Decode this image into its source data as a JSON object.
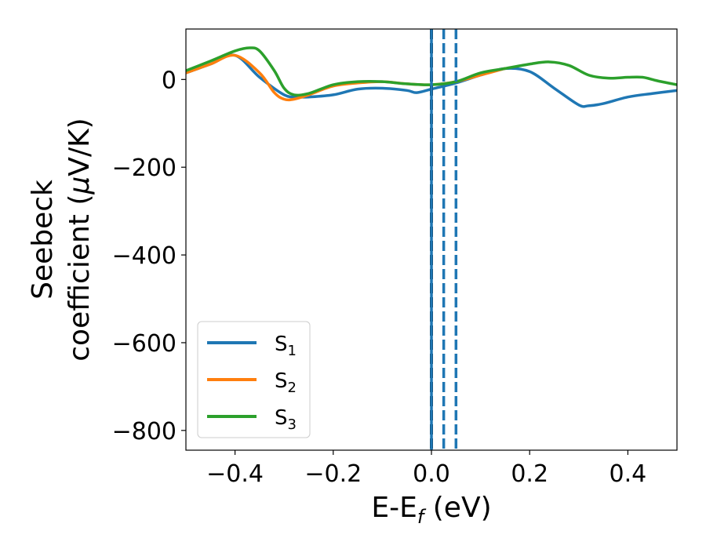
{
  "chart_data": {
    "type": "line",
    "xlabel": {
      "main": "E-E",
      "sub": "f",
      "unit": " (eV)"
    },
    "ylabel": {
      "line1": "Seebeck",
      "line2_pre": "coefficient  (",
      "mu": "μ",
      "line2_post": "V/K)"
    },
    "xlim": [
      -0.5,
      0.5
    ],
    "ylim": [
      -845,
      115
    ],
    "xticks": [
      -0.4,
      -0.2,
      0.0,
      0.2,
      0.4
    ],
    "xtick_labels": [
      "−0.4",
      "−0.2",
      "0.0",
      "0.2",
      "0.4"
    ],
    "yticks": [
      0,
      -200,
      -400,
      -600,
      -800
    ],
    "ytick_labels": [
      "0",
      "−200",
      "−400",
      "−600",
      "−800"
    ],
    "grid": false,
    "legend_position": "lower-left",
    "series": [
      {
        "name": "S1",
        "label_main": "S",
        "label_sub": "1",
        "color": "#1f77b4",
        "x": [
          -0.5,
          -0.45,
          -0.4,
          -0.35,
          -0.3,
          -0.27,
          -0.25,
          -0.2,
          -0.15,
          -0.1,
          -0.05,
          -0.03,
          0.0,
          0.05,
          0.1,
          0.15,
          0.2,
          0.25,
          0.3,
          0.32,
          0.35,
          0.4,
          0.45,
          0.5
        ],
        "y": [
          15,
          35,
          55,
          5,
          -35,
          -40,
          -40,
          -35,
          -22,
          -20,
          -25,
          -30,
          -22,
          -8,
          10,
          25,
          18,
          -20,
          -58,
          -60,
          -55,
          -40,
          -32,
          -25
        ]
      },
      {
        "name": "S2",
        "label_main": "S",
        "label_sub": "2",
        "color": "#ff7f0e",
        "x": [
          -0.5,
          -0.45,
          -0.4,
          -0.35,
          -0.32,
          -0.3,
          -0.28,
          -0.25,
          -0.2,
          -0.15,
          -0.1,
          -0.05,
          0.0,
          0.05,
          0.1,
          0.15
        ],
        "y": [
          15,
          35,
          55,
          15,
          -30,
          -45,
          -45,
          -35,
          -15,
          -8,
          -5,
          -10,
          -12,
          -5,
          10,
          25
        ]
      },
      {
        "name": "S3",
        "label_main": "S",
        "label_sub": "3",
        "color": "#2ca02c",
        "x": [
          -0.5,
          -0.45,
          -0.4,
          -0.37,
          -0.35,
          -0.32,
          -0.3,
          -0.28,
          -0.25,
          -0.2,
          -0.15,
          -0.1,
          -0.05,
          0.0,
          0.05,
          0.1,
          0.15,
          0.2,
          0.24,
          0.28,
          0.32,
          0.36,
          0.4,
          0.43,
          0.46,
          0.5
        ],
        "y": [
          20,
          42,
          65,
          72,
          65,
          20,
          -20,
          -35,
          -32,
          -12,
          -5,
          -5,
          -10,
          -12,
          -5,
          15,
          25,
          35,
          40,
          32,
          10,
          3,
          5,
          5,
          -3,
          -12
        ]
      }
    ],
    "vlines": [
      {
        "x": 0.0,
        "color": "#000000",
        "style": "dashed"
      },
      {
        "x": 0.0,
        "color": "#1f77b4",
        "style": "solid"
      },
      {
        "x": 0.025,
        "color": "#1f77b4",
        "style": "dashed"
      },
      {
        "x": 0.05,
        "color": "#1f77b4",
        "style": "dashed"
      }
    ]
  }
}
